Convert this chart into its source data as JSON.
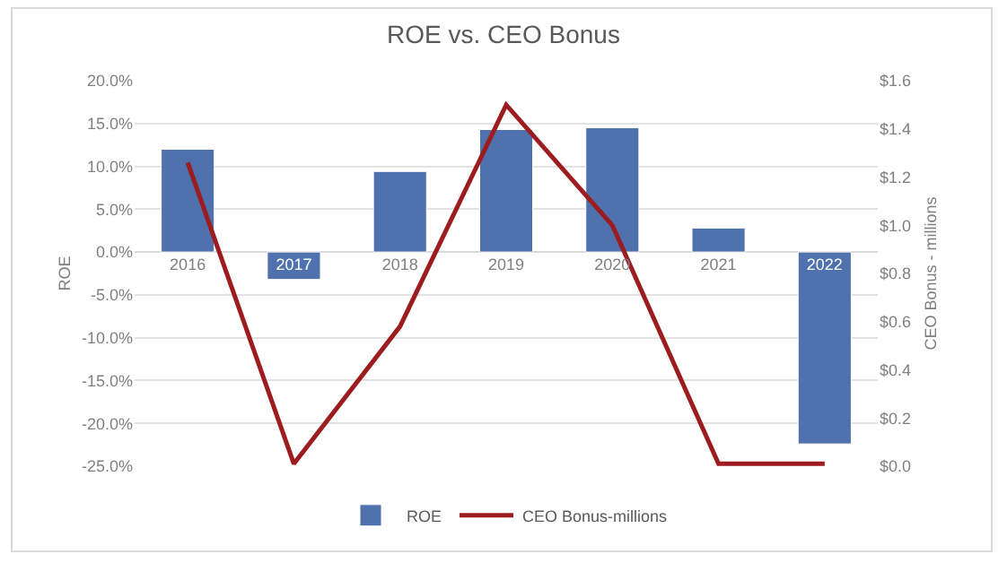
{
  "chart_data": {
    "type": "bar",
    "title": "ROE vs. CEO Bonus",
    "ylabel": "ROE",
    "y2label": "CEO Bonus - millions",
    "categories": [
      "2016",
      "2017",
      "2018",
      "2019",
      "2020",
      "2021",
      "2022"
    ],
    "series": [
      {
        "name": "ROE",
        "color": "#4f71ae",
        "values": [
          12.0,
          -3.2,
          9.4,
          14.3,
          14.5,
          2.8,
          -22.4
        ]
      },
      {
        "name": "CEO Bonus-millions",
        "type": "line",
        "axis": "y2",
        "color": "#9c1c1f",
        "marker": "none",
        "values": [
          1.26,
          0.01,
          0.58,
          1.5,
          1.0,
          0.01,
          0.01
        ]
      }
    ],
    "ylim": [
      -25,
      20
    ],
    "yticks": [
      {
        "value": -25,
        "label": "-25.0%"
      },
      {
        "value": -20,
        "label": "-20.0%"
      },
      {
        "value": -15,
        "label": "-15.0%"
      },
      {
        "value": -10,
        "label": "-10.0%"
      },
      {
        "value": -5,
        "label": "-5.0%"
      },
      {
        "value": 0,
        "label": "0.0%"
      },
      {
        "value": 5,
        "label": "5.0%"
      },
      {
        "value": 10,
        "label": "10.0%"
      },
      {
        "value": 15,
        "label": "15.0%"
      },
      {
        "value": 20,
        "label": "20.0%"
      }
    ],
    "y2lim": [
      0,
      1.6
    ],
    "y2ticks": [
      {
        "value": 0,
        "label": "$0.0"
      },
      {
        "value": 0.2,
        "label": "$0.2"
      },
      {
        "value": 0.4,
        "label": "$0.4"
      },
      {
        "value": 0.6,
        "label": "$0.6"
      },
      {
        "value": 0.8,
        "label": "$0.8"
      },
      {
        "value": 1.0,
        "label": "$1.0"
      },
      {
        "value": 1.2,
        "label": "$1.2"
      },
      {
        "value": 1.4,
        "label": "$1.4"
      },
      {
        "value": 1.6,
        "label": "$1.6"
      }
    ],
    "grid": "y",
    "legend": "bottom"
  }
}
